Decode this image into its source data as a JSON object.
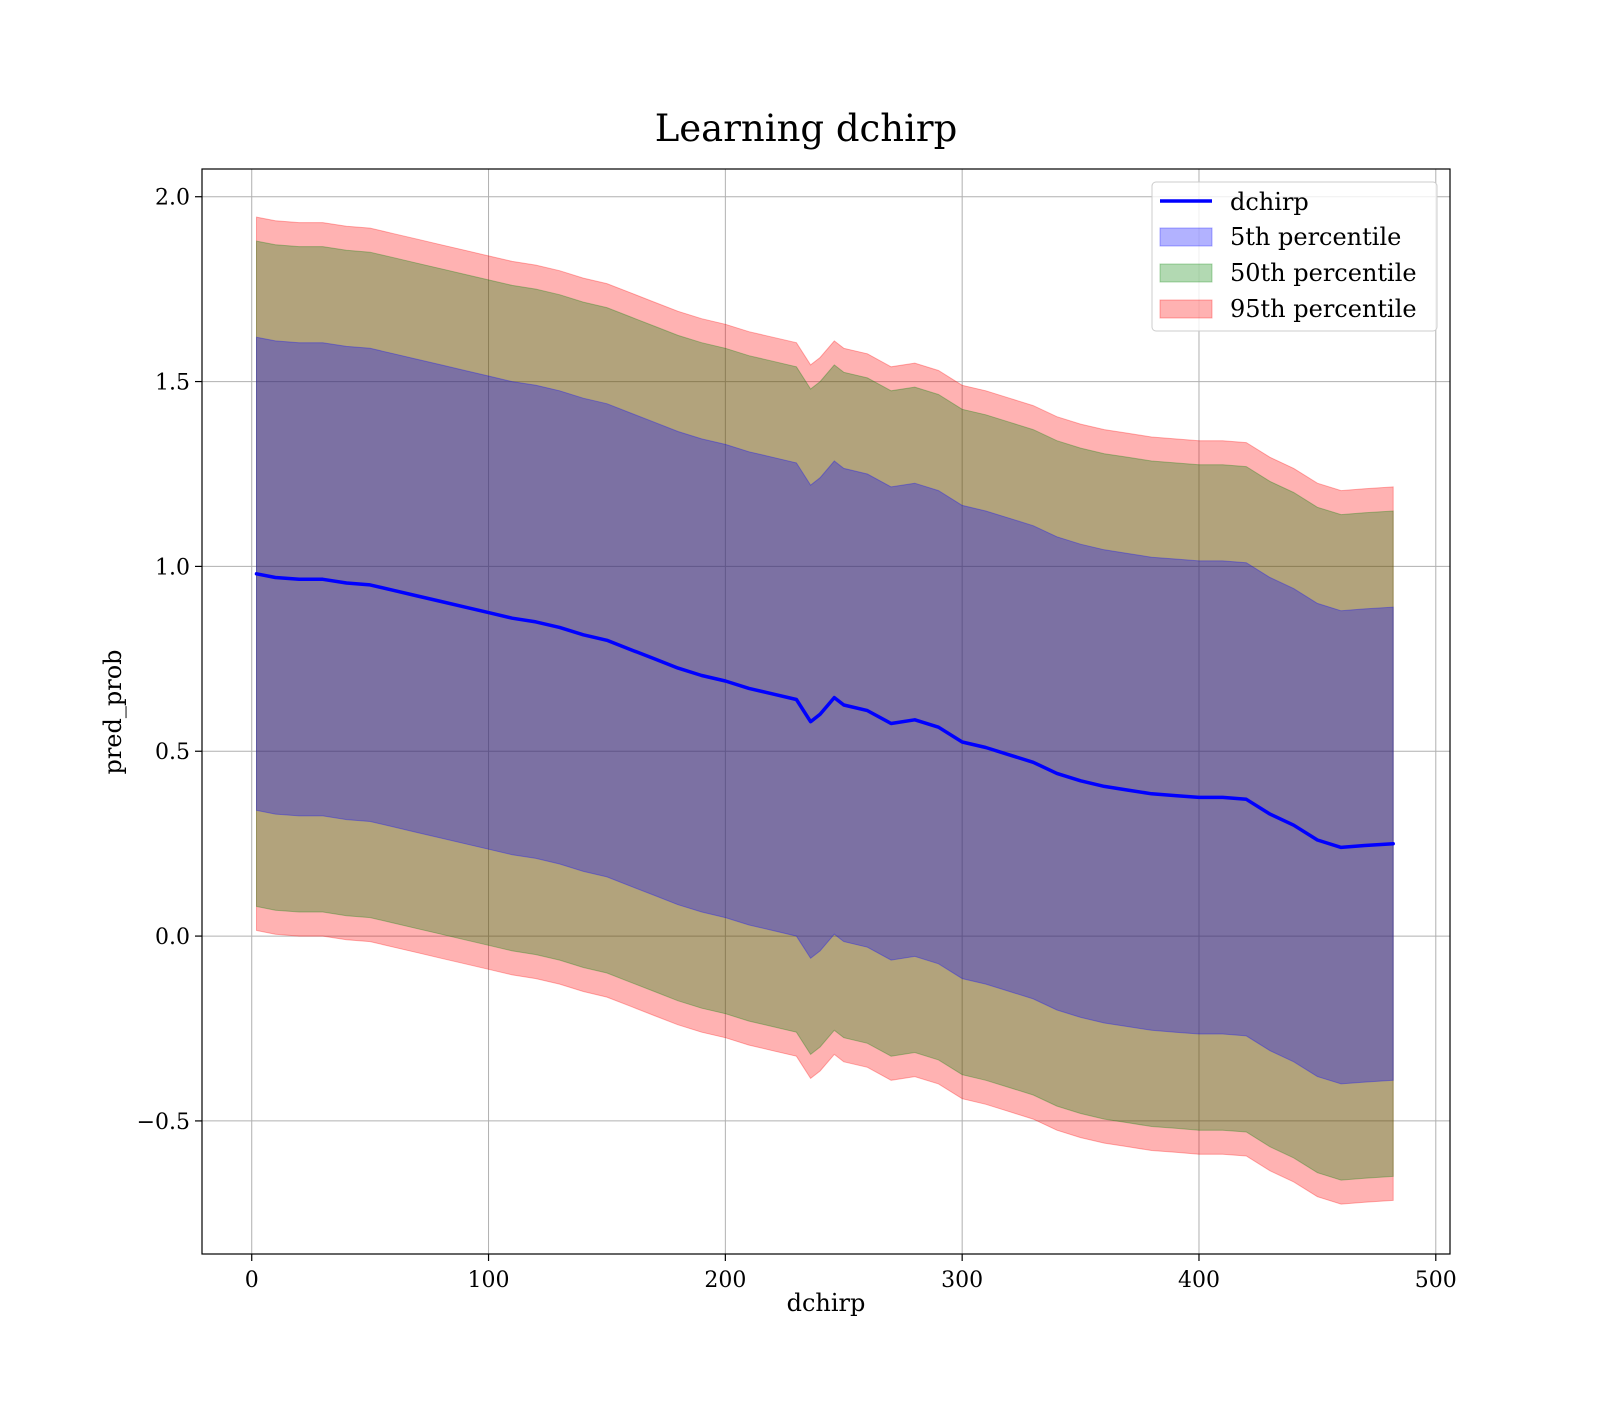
{
  "chart_data": {
    "type": "line",
    "title": "Learning dchirp",
    "xlabel": "dchirp",
    "ylabel": "pred_prob",
    "xlim": [
      -21,
      506
    ],
    "ylim": [
      -0.86,
      2.075
    ],
    "grid": true,
    "legend_position": "top-right",
    "x_ticks": [
      0,
      100,
      200,
      300,
      400,
      500
    ],
    "x_tick_labels": [
      "0",
      "100",
      "200",
      "300",
      "400",
      "500"
    ],
    "y_ticks": [
      -0.5,
      0.0,
      0.5,
      1.0,
      1.5,
      2.0
    ],
    "y_tick_labels": [
      "−0.5",
      "0.0",
      "0.5",
      "1.0",
      "1.5",
      "2.0"
    ],
    "x": [
      2,
      10,
      20,
      30,
      40,
      50,
      60,
      70,
      80,
      90,
      100,
      110,
      120,
      130,
      140,
      150,
      160,
      170,
      180,
      190,
      200,
      210,
      220,
      230,
      236,
      240,
      246,
      250,
      260,
      270,
      280,
      290,
      300,
      310,
      320,
      330,
      340,
      350,
      360,
      370,
      380,
      390,
      400,
      410,
      420,
      430,
      440,
      450,
      460,
      470,
      482
    ],
    "center": [
      0.98,
      0.97,
      0.965,
      0.965,
      0.955,
      0.95,
      0.935,
      0.92,
      0.905,
      0.89,
      0.875,
      0.86,
      0.85,
      0.835,
      0.815,
      0.8,
      0.775,
      0.75,
      0.725,
      0.705,
      0.69,
      0.67,
      0.655,
      0.64,
      0.58,
      0.6,
      0.645,
      0.625,
      0.61,
      0.575,
      0.585,
      0.565,
      0.525,
      0.51,
      0.49,
      0.47,
      0.44,
      0.42,
      0.405,
      0.395,
      0.385,
      0.38,
      0.375,
      0.375,
      0.37,
      0.33,
      0.3,
      0.26,
      0.24,
      0.245,
      0.25
    ],
    "series": [
      {
        "name": "dchirp",
        "type": "line",
        "color": "#0000ff",
        "values": [
          0.98,
          0.97,
          0.965,
          0.965,
          0.955,
          0.95,
          0.935,
          0.92,
          0.905,
          0.89,
          0.875,
          0.86,
          0.85,
          0.835,
          0.815,
          0.8,
          0.775,
          0.75,
          0.725,
          0.705,
          0.69,
          0.67,
          0.655,
          0.64,
          0.58,
          0.6,
          0.645,
          0.625,
          0.61,
          0.575,
          0.585,
          0.565,
          0.525,
          0.51,
          0.49,
          0.47,
          0.44,
          0.42,
          0.405,
          0.395,
          0.385,
          0.38,
          0.375,
          0.375,
          0.37,
          0.33,
          0.3,
          0.26,
          0.24,
          0.245,
          0.25
        ]
      },
      {
        "name": "5th percentile",
        "type": "band",
        "color": "#0000ff",
        "half_width": [
          0.64,
          0.64,
          0.64,
          0.64,
          0.64,
          0.64,
          0.64,
          0.64,
          0.64,
          0.64,
          0.64,
          0.64,
          0.64,
          0.64,
          0.64,
          0.64,
          0.64,
          0.64,
          0.64,
          0.64,
          0.64,
          0.64,
          0.64,
          0.64,
          0.64,
          0.64,
          0.64,
          0.64,
          0.64,
          0.64,
          0.64,
          0.64,
          0.64,
          0.64,
          0.64,
          0.64,
          0.64,
          0.64,
          0.64,
          0.64,
          0.64,
          0.64,
          0.64,
          0.64,
          0.64,
          0.64,
          0.64,
          0.64,
          0.64,
          0.64,
          0.64
        ]
      },
      {
        "name": "50th percentile",
        "type": "band",
        "color": "#008000",
        "half_width": [
          0.9,
          0.9,
          0.9,
          0.9,
          0.9,
          0.9,
          0.9,
          0.9,
          0.9,
          0.9,
          0.9,
          0.9,
          0.9,
          0.9,
          0.9,
          0.9,
          0.9,
          0.9,
          0.9,
          0.9,
          0.9,
          0.9,
          0.9,
          0.9,
          0.9,
          0.9,
          0.9,
          0.9,
          0.9,
          0.9,
          0.9,
          0.9,
          0.9,
          0.9,
          0.9,
          0.9,
          0.9,
          0.9,
          0.9,
          0.9,
          0.9,
          0.9,
          0.9,
          0.9,
          0.9,
          0.9,
          0.9,
          0.9,
          0.9,
          0.9,
          0.9
        ]
      },
      {
        "name": "95th percentile",
        "type": "band",
        "color": "#ff0000",
        "half_width": [
          0.965,
          0.965,
          0.965,
          0.965,
          0.965,
          0.965,
          0.965,
          0.965,
          0.965,
          0.965,
          0.965,
          0.965,
          0.965,
          0.965,
          0.965,
          0.965,
          0.965,
          0.965,
          0.965,
          0.965,
          0.965,
          0.965,
          0.965,
          0.965,
          0.965,
          0.965,
          0.965,
          0.965,
          0.965,
          0.965,
          0.965,
          0.965,
          0.965,
          0.965,
          0.965,
          0.965,
          0.965,
          0.965,
          0.965,
          0.965,
          0.965,
          0.965,
          0.965,
          0.965,
          0.965,
          0.965,
          0.965,
          0.965,
          0.965,
          0.965,
          0.965
        ]
      }
    ]
  }
}
